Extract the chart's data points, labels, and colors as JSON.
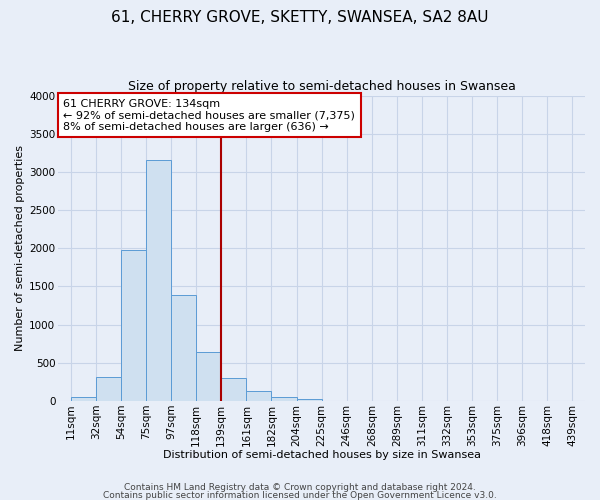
{
  "title": "61, CHERRY GROVE, SKETTY, SWANSEA, SA2 8AU",
  "subtitle": "Size of property relative to semi-detached houses in Swansea",
  "xlabel": "Distribution of semi-detached houses by size in Swansea",
  "ylabel": "Number of semi-detached properties",
  "footer_line1": "Contains HM Land Registry data © Crown copyright and database right 2024.",
  "footer_line2": "Contains public sector information licensed under the Open Government Licence v3.0.",
  "bin_labels": [
    "11sqm",
    "32sqm",
    "54sqm",
    "75sqm",
    "97sqm",
    "118sqm",
    "139sqm",
    "161sqm",
    "182sqm",
    "204sqm",
    "225sqm",
    "246sqm",
    "268sqm",
    "289sqm",
    "311sqm",
    "332sqm",
    "353sqm",
    "375sqm",
    "396sqm",
    "418sqm",
    "439sqm"
  ],
  "bar_values": [
    50,
    320,
    1980,
    3160,
    1390,
    640,
    300,
    130,
    55,
    30,
    0,
    0,
    0,
    0,
    0,
    0,
    0,
    0,
    0,
    0
  ],
  "bar_color": "#cfe0f0",
  "bar_edge_color": "#5b9bd5",
  "background_color": "#e8eef8",
  "plot_bg_color": "#e8eef8",
  "vline_x": 6,
  "vline_color": "#aa0000",
  "annotation_title": "61 CHERRY GROVE: 134sqm",
  "annotation_line1": "← 92% of semi-detached houses are smaller (7,375)",
  "annotation_line2": "8% of semi-detached houses are larger (636) →",
  "annotation_box_color": "#ffffff",
  "annotation_box_edge": "#cc0000",
  "ylim": [
    0,
    4000
  ],
  "yticks": [
    0,
    500,
    1000,
    1500,
    2000,
    2500,
    3000,
    3500,
    4000
  ],
  "grid_color": "#c8d4e8",
  "title_fontsize": 11,
  "subtitle_fontsize": 9,
  "axis_label_fontsize": 8,
  "tick_fontsize": 7.5,
  "footer_fontsize": 6.5,
  "annotation_fontsize": 8
}
